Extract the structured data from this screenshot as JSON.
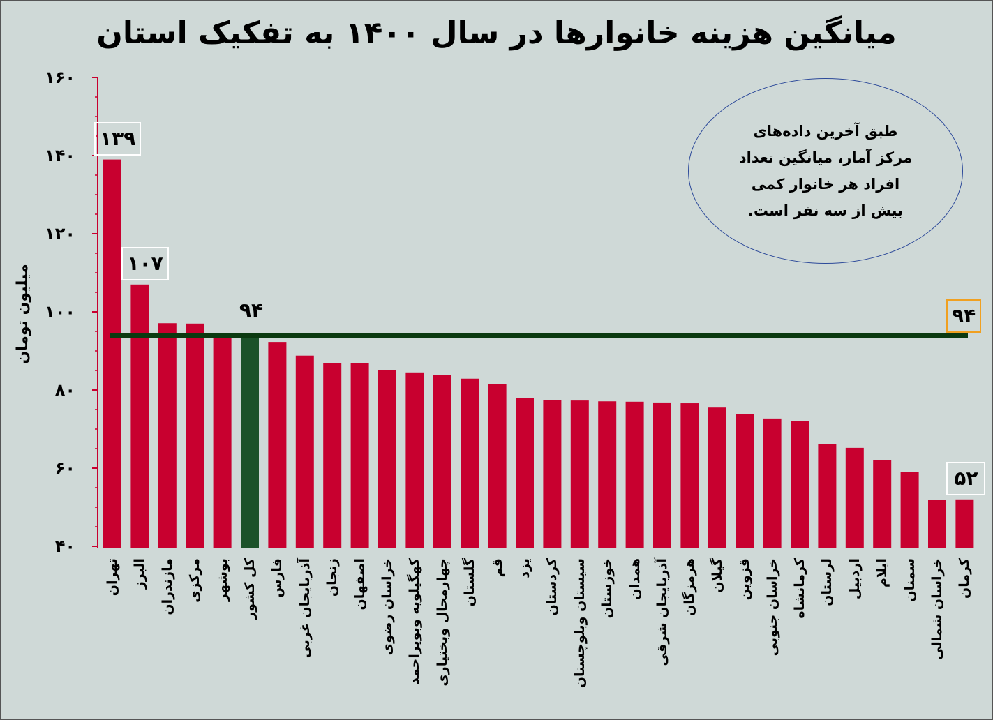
{
  "chart_data": {
    "type": "bar",
    "title": "میانگین هزینه خانوارها در سال ۱۴۰۰ به تفکیک استان",
    "ylabel": "میلیون تومان",
    "xlabel": "",
    "ylim": [
      40,
      160
    ],
    "yticks": [
      40,
      60,
      80,
      100,
      120,
      140,
      160
    ],
    "ytick_labels": [
      "۴۰",
      "۶۰",
      "۸۰",
      "۱۰۰",
      "۱۲۰",
      "۱۴۰",
      "۱۶۰"
    ],
    "grid": false,
    "categories": [
      "تهران",
      "البرز",
      "مازندران",
      "مرکزی",
      "بوشهر",
      "کل کشور",
      "فارس",
      "آذربایجان غربی",
      "زنجان",
      "اصفهان",
      "خراسان رضوی",
      "کهگیلویه وبویراحمد",
      "چهارمحال وبختیاری",
      "گلستان",
      "قم",
      "یزد",
      "کردستان",
      "سیستان وبلوچستان",
      "خوزستان",
      "همدان",
      "آذربایجان شرقی",
      "هرمزگان",
      "گیلان",
      "قزوین",
      "خراسان جنوبی",
      "کرمانشاه",
      "لرستان",
      "اردبیل",
      "ایلام",
      "سمنان",
      "خراسان شمالی",
      "کرمان"
    ],
    "values": [
      139,
      107,
      97.1,
      97,
      94.3,
      94,
      92.3,
      88.8,
      86.8,
      86.8,
      85,
      84.5,
      83.9,
      82.9,
      81.6,
      78,
      77.5,
      77.3,
      77.1,
      77,
      76.8,
      76.6,
      75.5,
      73.9,
      72.7,
      72.1,
      66.1,
      65.2,
      62.1,
      59.1,
      51.8,
      52
    ],
    "highlight_category": "کل کشور",
    "data_labels": [
      {
        "category": "تهران",
        "text": "۱۳۹"
      },
      {
        "category": "البرز",
        "text": "۱۰۷"
      },
      {
        "category": "کل کشور",
        "text": "۹۴"
      },
      {
        "category": "کرمان",
        "text": "۵۲"
      }
    ],
    "reference_line": {
      "value": 94,
      "label": "۹۴"
    },
    "annotation": "طبق آخرین داده‌های مرکز آمار، میانگین تعداد افراد هر خانوار کمی بیش از سه نفر است.",
    "colors": {
      "bar": "#c8002f",
      "highlight": "#1b5229",
      "reference_line": "#0b3a10",
      "reference_box": "#f0a020",
      "axis": "#c8002f",
      "background": "#cfd9d7"
    }
  }
}
